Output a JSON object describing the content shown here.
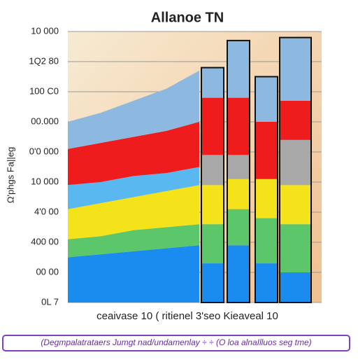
{
  "chart_data": [
    {
      "type": "area",
      "title": "Allanoe TN",
      "y_label": "Ω'phgs Fa||eg",
      "x_label": "ceaivase 10 ( ritienel 3'seo Kieaveal 10",
      "caption": "(Degmpalatrataers  Jumgt nad/undamenlay ÷ ÷ (O loa alnaIlluos seg tme)",
      "x": [
        0,
        1,
        2,
        3,
        4
      ],
      "xlim": [
        0,
        4
      ],
      "ylim": [
        0,
        9
      ],
      "yticks": [
        {
          "value": 0,
          "label": "0L 7"
        },
        {
          "value": 1,
          "label": "00 00"
        },
        {
          "value": 2,
          "label": "400 00"
        },
        {
          "value": 3,
          "label": "4'0 00"
        },
        {
          "value": 4,
          "label": "10 000"
        },
        {
          "value": 5,
          "label": "0'0 000"
        },
        {
          "value": 6,
          "label": "00.000"
        },
        {
          "value": 7,
          "label": "100 C0"
        },
        {
          "value": 8,
          "label": "1Q2 80"
        },
        {
          "value": 9,
          "label": "10 000"
        }
      ],
      "grid": true,
      "series": [
        {
          "color": "#1a8cf0",
          "values": [
            1.5,
            1.6,
            1.7,
            1.8,
            1.9
          ]
        },
        {
          "color": "#5cc66a",
          "values": [
            0.6,
            0.6,
            0.7,
            0.7,
            0.7
          ]
        },
        {
          "color": "#f4e21a",
          "values": [
            1.0,
            1.1,
            1.1,
            1.2,
            1.3
          ]
        },
        {
          "color": "#5ab8f0",
          "values": [
            0.8,
            0.7,
            0.7,
            0.6,
            0.6
          ]
        },
        {
          "color": "#ee1c1c",
          "values": [
            1.2,
            1.3,
            1.3,
            1.4,
            1.5
          ]
        },
        {
          "color": "#8db8e0",
          "values": [
            0.9,
            1.0,
            1.2,
            1.4,
            1.7
          ]
        }
      ]
    },
    {
      "type": "bar",
      "ylim": [
        0,
        9
      ],
      "categories": [
        null,
        null,
        null,
        null
      ],
      "series": [
        {
          "color": "#1a8cf0",
          "values": [
            1.3,
            1.9,
            1.3,
            1.0
          ]
        },
        {
          "color": "#5cc66a",
          "values": [
            1.3,
            1.2,
            1.5,
            1.6
          ]
        },
        {
          "color": "#f4e21a",
          "values": [
            1.3,
            1.0,
            1.3,
            1.3
          ]
        },
        {
          "color": "#a8a8a8",
          "values": [
            1.0,
            0.8,
            0,
            1.5
          ]
        },
        {
          "color": "#ee1c1c",
          "values": [
            1.9,
            1.9,
            1.9,
            1.3
          ]
        },
        {
          "color": "#8db8e0",
          "values": [
            1.0,
            1.9,
            1.5,
            2.1
          ]
        }
      ]
    }
  ]
}
